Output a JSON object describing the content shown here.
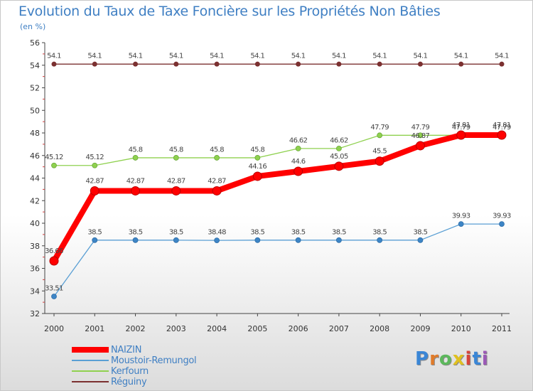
{
  "header": {
    "title": "Evolution du Taux de Taxe Foncière sur les Propriétés Non Bâties",
    "unit": "(en %)"
  },
  "logo": {
    "letters": [
      "P",
      "r",
      "o",
      "x",
      "i",
      "t",
      "i"
    ],
    "colors": [
      "#3a86d6",
      "#e07b2a",
      "#5cb85c",
      "#e0c020",
      "#d8443a",
      "#3a86d6",
      "#9b59b6"
    ]
  },
  "chart_data": {
    "type": "line",
    "title": "Evolution du Taux de Taxe Foncière sur les Propriétés Non Bâties",
    "ylabel": "(en %)",
    "xlabel": "",
    "ylim": [
      32,
      56
    ],
    "yticks": [
      32,
      34,
      36,
      38,
      40,
      42,
      44,
      46,
      48,
      50,
      52,
      54,
      56
    ],
    "x": [
      "2000",
      "2001",
      "2002",
      "2003",
      "2004",
      "2005",
      "2006",
      "2007",
      "2008",
      "2009",
      "2010",
      "2011"
    ],
    "grid": false,
    "legend_position": "bottom-left",
    "series": [
      {
        "name": "Réguiny",
        "color": "#7b3030",
        "values": [
          54.1,
          54.1,
          54.1,
          54.1,
          54.1,
          54.1,
          54.1,
          54.1,
          54.1,
          54.1,
          54.1,
          54.1
        ],
        "labels": [
          "54.1",
          "54.1",
          "54.1",
          "54.1",
          "54.1",
          "54.1",
          "54.1",
          "54.1",
          "54.1",
          "54.1",
          "54.1",
          "54.1"
        ]
      },
      {
        "name": "Kerfourn",
        "color": "#8fd14f",
        "values": [
          45.12,
          45.12,
          45.8,
          45.8,
          45.8,
          45.8,
          46.62,
          46.62,
          47.79,
          47.79,
          47.79,
          47.79
        ],
        "labels": [
          "45.12",
          "45.12",
          "45.8",
          "45.8",
          "45.8",
          "45.8",
          "46.62",
          "46.62",
          "47.79",
          "47.79",
          "47.79",
          "47.79"
        ]
      },
      {
        "name": "Moustoir-Remungol",
        "color": "#5a9fd4",
        "values": [
          33.51,
          38.5,
          38.5,
          38.5,
          38.48,
          38.5,
          38.5,
          38.5,
          38.5,
          38.5,
          39.93,
          39.93
        ],
        "labels": [
          "33.51",
          "38.5",
          "38.5",
          "38.5",
          "38.48",
          "38.5",
          "38.5",
          "38.5",
          "38.5",
          "38.5",
          "39.93",
          "39.93"
        ]
      },
      {
        "name": "NAIZIN",
        "color": "#ff0000",
        "values": [
          36.66,
          42.87,
          42.87,
          42.87,
          42.87,
          44.16,
          44.6,
          45.05,
          45.5,
          46.87,
          47.81,
          47.81
        ],
        "labels": [
          "36.66",
          "42.87",
          "42.87",
          "42.87",
          "42.87",
          "44.16",
          "44.6",
          "45.05",
          "45.5",
          "46.87",
          "47.81",
          "47.81"
        ]
      }
    ],
    "legend": [
      {
        "name": "NAIZIN",
        "color": "#ff0000",
        "weight": "thick"
      },
      {
        "name": "Moustoir-Remungol",
        "color": "#5a9fd4",
        "weight": "thin"
      },
      {
        "name": "Kerfourn",
        "color": "#8fd14f",
        "weight": "thin"
      },
      {
        "name": "Réguiny",
        "color": "#7b3030",
        "weight": "thin"
      }
    ]
  }
}
